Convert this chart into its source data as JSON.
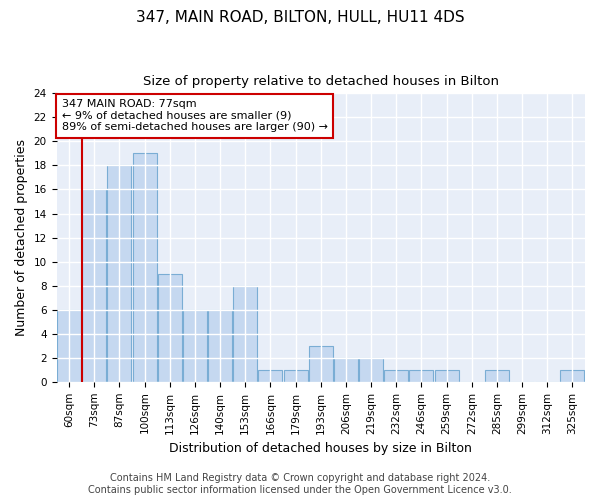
{
  "title": "347, MAIN ROAD, BILTON, HULL, HU11 4DS",
  "subtitle": "Size of property relative to detached houses in Bilton",
  "xlabel": "Distribution of detached houses by size in Bilton",
  "ylabel": "Number of detached properties",
  "categories": [
    "60sqm",
    "73sqm",
    "87sqm",
    "100sqm",
    "113sqm",
    "126sqm",
    "140sqm",
    "153sqm",
    "166sqm",
    "179sqm",
    "193sqm",
    "206sqm",
    "219sqm",
    "232sqm",
    "246sqm",
    "259sqm",
    "272sqm",
    "285sqm",
    "299sqm",
    "312sqm",
    "325sqm"
  ],
  "values": [
    6,
    16,
    18,
    19,
    9,
    6,
    6,
    8,
    1,
    1,
    3,
    2,
    2,
    1,
    1,
    1,
    0,
    1,
    0,
    0,
    1
  ],
  "bar_color": "#c5d8f0",
  "bar_edge_color": "#7aadd4",
  "annotation_box_color": "#ffffff",
  "annotation_box_edge": "#cc0000",
  "vline_color": "#cc0000",
  "vline_x": 1,
  "annotation_text_line1": "347 MAIN ROAD: 77sqm",
  "annotation_text_line2": "← 9% of detached houses are smaller (9)",
  "annotation_text_line3": "89% of semi-detached houses are larger (90) →",
  "ylim": [
    0,
    24
  ],
  "yticks": [
    0,
    2,
    4,
    6,
    8,
    10,
    12,
    14,
    16,
    18,
    20,
    22,
    24
  ],
  "footer_line1": "Contains HM Land Registry data © Crown copyright and database right 2024.",
  "footer_line2": "Contains public sector information licensed under the Open Government Licence v3.0.",
  "plot_bg_color": "#e8eef8",
  "fig_bg_color": "#ffffff",
  "grid_color": "#ffffff",
  "title_fontsize": 11,
  "subtitle_fontsize": 9.5,
  "annotation_fontsize": 8,
  "axis_label_fontsize": 9,
  "tick_fontsize": 7.5,
  "footer_fontsize": 7
}
